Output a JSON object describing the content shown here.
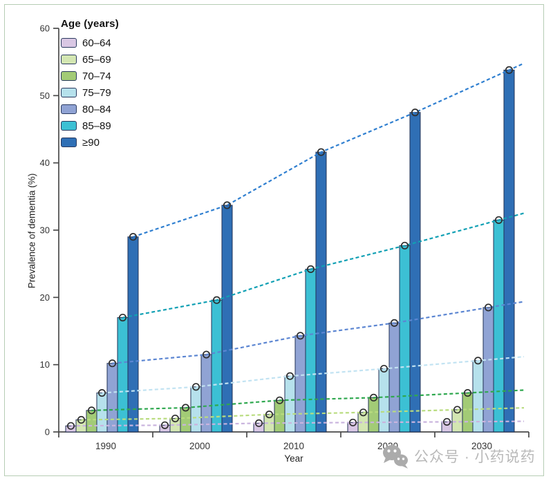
{
  "frame": {
    "border_color": "#b6cdb4"
  },
  "chart_data": {
    "type": "bar",
    "title": "",
    "xlabel": "Year",
    "ylabel": "Prevalence of dementia (%)",
    "ylim": [
      0,
      60
    ],
    "yticks": [
      0,
      10,
      20,
      30,
      40,
      50,
      60
    ],
    "grid": false,
    "legend_title": "Age (years)",
    "legend_position": "top-left",
    "categories": [
      "1990",
      "2000",
      "2010",
      "2020",
      "2030"
    ],
    "series": [
      {
        "name": "60–64",
        "bar_color": "#d9c7e4",
        "line_color": "#c9b4de",
        "values": [
          0.9,
          1.0,
          1.3,
          1.4,
          1.5
        ]
      },
      {
        "name": "65–69",
        "bar_color": "#d3e6b2",
        "line_color": "#b9dc7f",
        "values": [
          1.8,
          2.0,
          2.6,
          2.9,
          3.3
        ]
      },
      {
        "name": "70–74",
        "bar_color": "#a2cb76",
        "line_color": "#2fa84f",
        "values": [
          3.2,
          3.6,
          4.7,
          5.1,
          5.8
        ]
      },
      {
        "name": "75–79",
        "bar_color": "#b6e1ec",
        "line_color": "#c2e3f2",
        "values": [
          5.8,
          6.7,
          8.3,
          9.4,
          10.6
        ]
      },
      {
        "name": "80–84",
        "bar_color": "#90a3d4",
        "line_color": "#5c86d2",
        "values": [
          10.2,
          11.5,
          14.3,
          16.2,
          18.5
        ]
      },
      {
        "name": "85–89",
        "bar_color": "#3cc0d4",
        "line_color": "#11a0b4",
        "values": [
          17.0,
          19.6,
          24.2,
          27.7,
          31.5
        ]
      },
      {
        "name": "≥90",
        "bar_color": "#2f6fb5",
        "line_color": "#2f7fd0",
        "values": [
          29.0,
          33.7,
          41.6,
          47.5,
          53.8
        ]
      }
    ],
    "marker": "open-circle",
    "line_style": "dashed"
  },
  "watermark": {
    "text": "公众号 · 小药说药",
    "icon": "wechat-icon",
    "color": "#b9b9b9"
  }
}
